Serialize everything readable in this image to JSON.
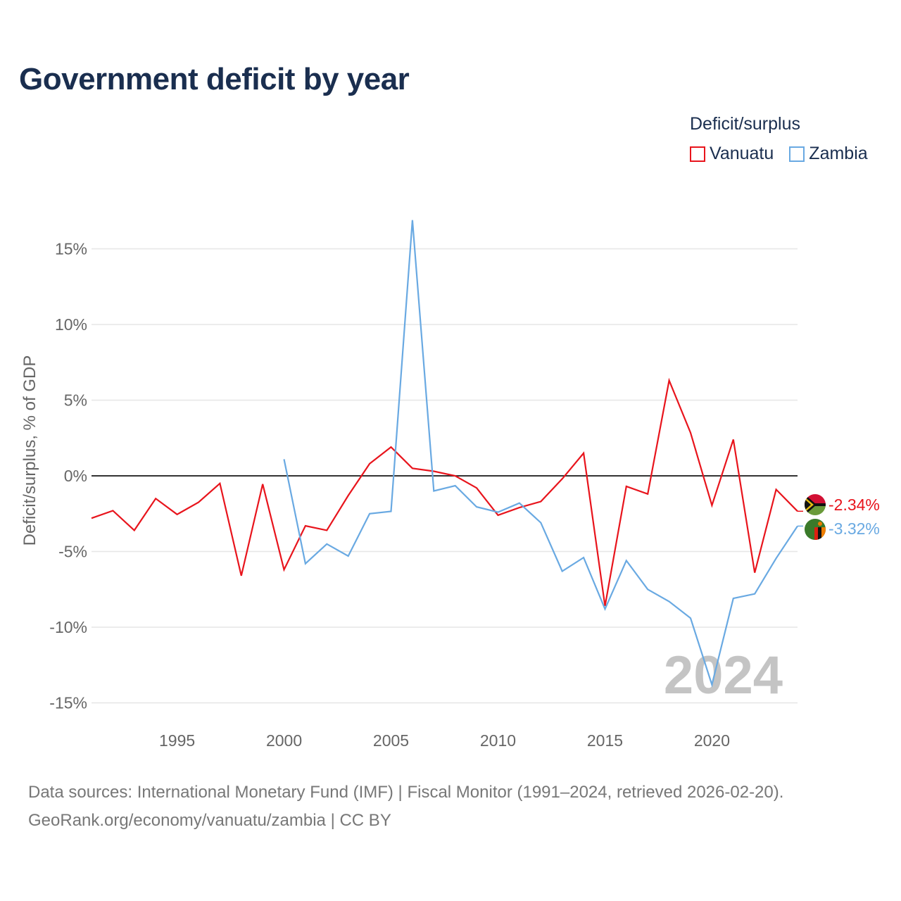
{
  "title": "Government deficit by year",
  "legend": {
    "title": "Deficit/surplus",
    "items": [
      {
        "label": "Vanuatu",
        "color": "#e8141c"
      },
      {
        "label": "Zambia",
        "color": "#69a9e2"
      }
    ]
  },
  "footer": {
    "line1": "Data sources: International Monetary Fund (IMF) | Fiscal Monitor (1991–2024, retrieved 2026-02-20).",
    "line2": "GeoRank.org/economy/vanuatu/zambia | CC BY"
  },
  "chart_data": {
    "type": "line",
    "title": "Government deficit by year",
    "xlabel": "",
    "ylabel": "Deficit/surplus, % of GDP",
    "xlim": [
      1991,
      2024
    ],
    "ylim": [
      -15,
      17
    ],
    "x_ticks": [
      1995,
      2000,
      2005,
      2010,
      2015,
      2020
    ],
    "y_ticks": [
      15,
      10,
      5,
      0,
      -5,
      -10,
      -15
    ],
    "y_tick_labels": [
      "15%",
      "10%",
      "5%",
      "0%",
      "-5%",
      "-10%",
      "-15%"
    ],
    "zero_line": true,
    "watermark_year": "2024",
    "series": [
      {
        "name": "Vanuatu",
        "color": "#e8141c",
        "end_label": "-2.34%",
        "x": [
          1991,
          1992,
          1993,
          1994,
          1995,
          1996,
          1997,
          1998,
          1999,
          2000,
          2001,
          2002,
          2003,
          2004,
          2005,
          2006,
          2007,
          2008,
          2009,
          2010,
          2011,
          2012,
          2013,
          2014,
          2015,
          2016,
          2017,
          2018,
          2019,
          2020,
          2021,
          2022,
          2023,
          2024
        ],
        "values": [
          -2.8,
          -2.3,
          -3.6,
          -1.5,
          -2.55,
          -1.75,
          -0.5,
          -6.6,
          -0.55,
          -6.2,
          -3.3,
          -3.6,
          -1.3,
          0.8,
          1.9,
          0.5,
          0.3,
          0.0,
          -0.8,
          -2.6,
          -2.1,
          -1.7,
          -0.2,
          1.5,
          -8.6,
          -0.7,
          -1.2,
          6.3,
          2.85,
          -1.95,
          2.4,
          -6.4,
          -0.9,
          -2.34
        ]
      },
      {
        "name": "Zambia",
        "color": "#69a9e2",
        "end_label": "-3.32%",
        "x": [
          2000,
          2001,
          2002,
          2003,
          2004,
          2005,
          2006,
          2007,
          2008,
          2009,
          2010,
          2011,
          2012,
          2013,
          2014,
          2015,
          2016,
          2017,
          2018,
          2019,
          2020,
          2021,
          2022,
          2023,
          2024
        ],
        "values": [
          1.1,
          -5.8,
          -4.5,
          -5.3,
          -2.5,
          -2.35,
          16.9,
          -1.0,
          -0.65,
          -2.05,
          -2.4,
          -1.8,
          -3.1,
          -6.3,
          -5.4,
          -8.8,
          -5.6,
          -7.5,
          -8.3,
          -9.4,
          -13.8,
          -8.1,
          -7.8,
          -5.45,
          -3.32
        ]
      }
    ]
  }
}
